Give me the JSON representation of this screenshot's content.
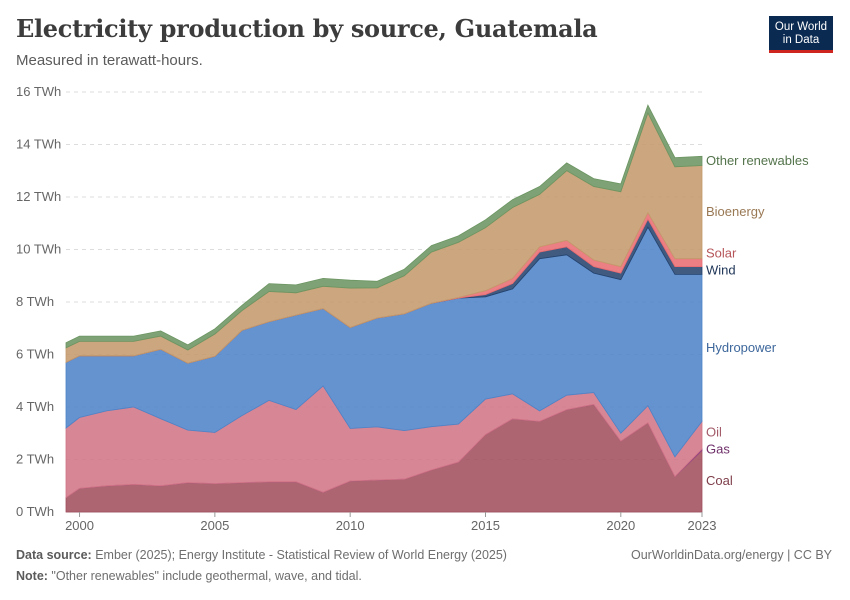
{
  "header": {
    "title": "Electricity production by source, Guatemala",
    "subtitle": "Measured in terawatt-hours."
  },
  "logo": {
    "line1": "Our World",
    "line2": "in Data"
  },
  "footer": {
    "source_label": "Data source:",
    "source_text": " Ember (2025); Energy Institute - Statistical Review of World Energy (2025)",
    "note_label": "Note:",
    "note_text": " \"Other renewables\" include geothermal, wave, and tidal.",
    "credit": "OurWorldinData.org/energy | CC BY"
  },
  "chart_data": {
    "type": "area",
    "stacked": true,
    "title": "Electricity production by source, Guatemala",
    "subtitle": "Measured in terawatt-hours.",
    "x_tick_labels": [
      "2000",
      "2005",
      "2010",
      "2015",
      "2020",
      "2023"
    ],
    "y_tick_labels": [
      "0 TWh",
      "2 TWh",
      "4 TWh",
      "6 TWh",
      "8 TWh",
      "10 TWh",
      "12 TWh",
      "14 TWh",
      "16 TWh"
    ],
    "ylim": [
      0,
      16
    ],
    "xlim": [
      1999.5,
      2023
    ],
    "grid": "horizontal dashed",
    "legend": "right inline labels",
    "x": [
      1999.5,
      2000,
      2001,
      2002,
      2003,
      2004,
      2005,
      2006,
      2007,
      2008,
      2009,
      2010,
      2011,
      2012,
      2013,
      2014,
      2015,
      2016,
      2017,
      2018,
      2019,
      2020,
      2021,
      2022,
      2023
    ],
    "series": [
      {
        "name": "Coal",
        "color": "#a2505f",
        "values": [
          0.55,
          0.9,
          1.0,
          1.05,
          1.0,
          1.12,
          1.08,
          1.12,
          1.15,
          1.15,
          0.75,
          1.18,
          1.22,
          1.25,
          1.6,
          1.9,
          2.95,
          3.55,
          3.45,
          3.9,
          4.1,
          2.7,
          3.4,
          1.35,
          2.35
        ]
      },
      {
        "name": "Gas",
        "color": "#8e3e88",
        "values": [
          0,
          0,
          0,
          0,
          0,
          0,
          0,
          0,
          0,
          0,
          0,
          0,
          0,
          0,
          0,
          0,
          0,
          0,
          0,
          0,
          0,
          0,
          0,
          0,
          0.05
        ]
      },
      {
        "name": "Oil",
        "color": "#d17586",
        "values": [
          2.65,
          2.7,
          2.85,
          2.95,
          2.55,
          2.0,
          1.95,
          2.55,
          3.1,
          2.75,
          4.05,
          2.0,
          2.02,
          1.85,
          1.65,
          1.45,
          1.35,
          0.95,
          0.4,
          0.55,
          0.45,
          0.3,
          0.65,
          0.75,
          1.05
        ]
      },
      {
        "name": "Hydropower",
        "color": "#4e84c8",
        "values": [
          2.5,
          2.35,
          2.1,
          1.95,
          2.65,
          2.55,
          2.9,
          3.25,
          3.0,
          3.6,
          2.95,
          3.85,
          4.15,
          4.45,
          4.7,
          4.8,
          3.9,
          4.0,
          5.8,
          5.35,
          4.55,
          5.85,
          6.8,
          6.95,
          5.6
        ]
      },
      {
        "name": "Wind",
        "color": "#25436e",
        "values": [
          0,
          0,
          0,
          0,
          0,
          0,
          0,
          0,
          0,
          0,
          0,
          0,
          0,
          0,
          0,
          0,
          0.08,
          0.2,
          0.25,
          0.3,
          0.25,
          0.25,
          0.3,
          0.3,
          0.3
        ]
      },
      {
        "name": "Solar",
        "color": "#e86d72",
        "values": [
          0,
          0,
          0,
          0,
          0,
          0,
          0,
          0,
          0,
          0,
          0,
          0,
          0,
          0,
          0,
          0.02,
          0.15,
          0.2,
          0.2,
          0.25,
          0.25,
          0.25,
          0.25,
          0.3,
          0.3
        ]
      },
      {
        "name": "Bioenergy",
        "color": "#c49a6c",
        "values": [
          0.55,
          0.55,
          0.55,
          0.55,
          0.5,
          0.5,
          0.85,
          0.75,
          1.15,
          0.85,
          0.85,
          1.5,
          1.15,
          1.45,
          1.95,
          2.1,
          2.4,
          2.7,
          2.0,
          2.65,
          2.8,
          2.85,
          3.8,
          3.5,
          3.55
        ]
      },
      {
        "name": "Other renewables",
        "color": "#6c9562",
        "values": [
          0.2,
          0.2,
          0.2,
          0.2,
          0.2,
          0.2,
          0.2,
          0.2,
          0.3,
          0.3,
          0.3,
          0.3,
          0.25,
          0.25,
          0.25,
          0.25,
          0.3,
          0.3,
          0.3,
          0.3,
          0.3,
          0.3,
          0.3,
          0.35,
          0.35
        ]
      }
    ]
  }
}
